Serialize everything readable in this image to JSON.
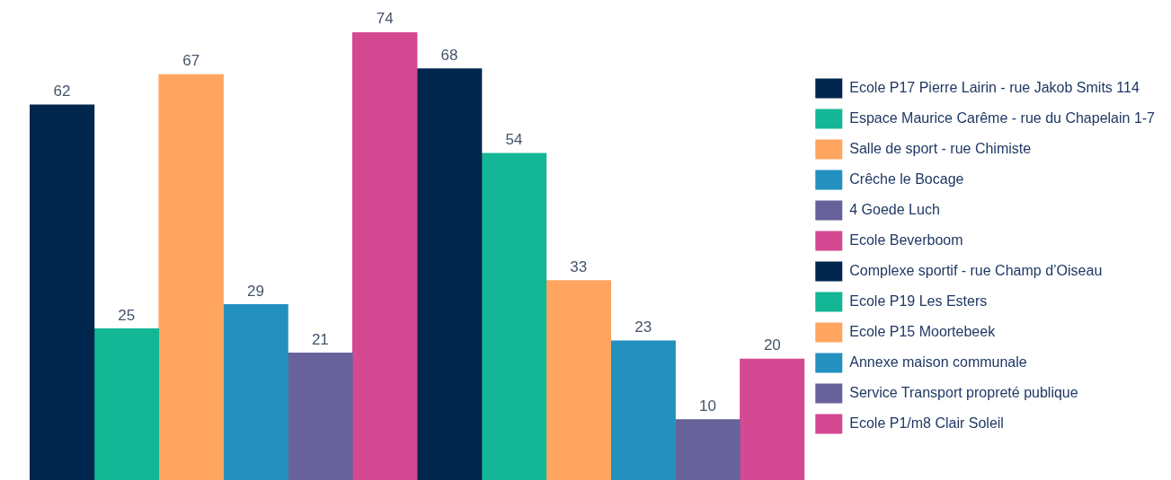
{
  "chart_data": {
    "type": "bar",
    "categories": [
      null
    ],
    "ylim": [
      0,
      74
    ],
    "tick_labels": false,
    "legend": "right",
    "data_labels": true,
    "series": [
      {
        "name": "Ecole P17 Pierre Lairin - rue Jakob Smits 114",
        "color": "#00264d",
        "values": [
          62
        ]
      },
      {
        "name": "Espace Maurice Carême - rue du Chapelain 1-7",
        "color": "#13b795",
        "values": [
          25
        ]
      },
      {
        "name": "Salle de sport - rue Chimiste",
        "color": "#ffa55f",
        "values": [
          67
        ]
      },
      {
        "name": "Crêche le Bocage",
        "color": "#2390c0",
        "values": [
          29
        ]
      },
      {
        "name": "4 Goede Luch",
        "color": "#67629a",
        "values": [
          21
        ]
      },
      {
        "name": "Ecole Beverboom",
        "color": "#d44a92",
        "values": [
          74
        ]
      },
      {
        "name": "Complexe sportif - rue Champ d’Oiseau",
        "color": "#00264d",
        "values": [
          68
        ]
      },
      {
        "name": "Ecole P19 Les Esters",
        "color": "#13b795",
        "values": [
          54
        ]
      },
      {
        "name": "Ecole P15 Moortebeek",
        "color": "#ffa55f",
        "values": [
          33
        ]
      },
      {
        "name": "Annexe maison communale",
        "color": "#2390c0",
        "values": [
          23
        ]
      },
      {
        "name": "Service Transport propreté publique",
        "color": "#67629a",
        "values": [
          10
        ]
      },
      {
        "name": "Ecole P1/m8 Clair Soleil",
        "color": "#d44a92",
        "values": [
          20
        ]
      }
    ]
  }
}
